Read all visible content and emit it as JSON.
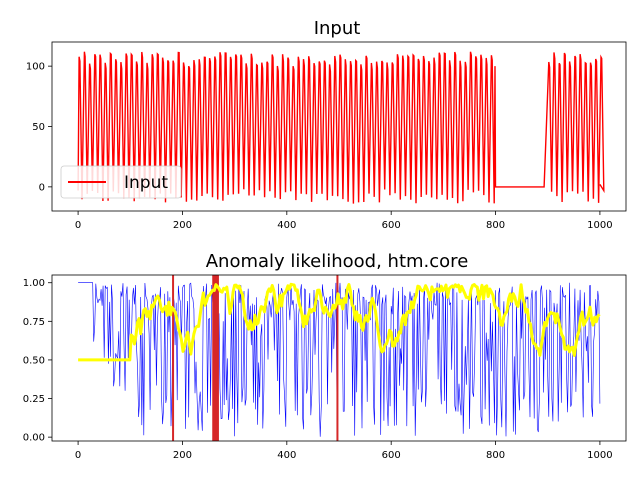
{
  "chart_data": [
    {
      "type": "line",
      "title": "Input",
      "xlabel": "",
      "ylabel": "",
      "xlim": [
        -50,
        1050
      ],
      "ylim": [
        -20,
        120
      ],
      "xticks": [
        0,
        200,
        400,
        600,
        800,
        1000
      ],
      "yticks": [
        0,
        50,
        100
      ],
      "grid": false,
      "legend": {
        "placement": "lower-left",
        "entries": [
          "Input"
        ]
      },
      "series": [
        {
          "name": "Input",
          "color": "#ff0000",
          "description_values": {
            "x_range": [
              0,
              1000
            ],
            "oscillation_period": 10,
            "high_range": [
              100,
              112
            ],
            "low_range": [
              -14,
              -2
            ],
            "flat_segment": {
              "x": [
                800,
                895
              ],
              "y": 0
            },
            "end_value": 2
          }
        }
      ]
    },
    {
      "type": "line",
      "title": "Anomaly likelihood, htm.core",
      "xlabel": "",
      "ylabel": "",
      "xlim": [
        -50,
        1050
      ],
      "ylim": [
        -0.025,
        1.05
      ],
      "xticks": [
        0,
        200,
        400,
        600,
        800,
        1000
      ],
      "yticks": [
        0.0,
        0.25,
        0.5,
        0.75,
        1.0
      ],
      "grid": false,
      "vertical_markers": {
        "color": "#d62728",
        "x": [
          182,
          259,
          262,
          265,
          268,
          497
        ]
      },
      "series": [
        {
          "name": "",
          "color": "#0000ff",
          "description_values": {
            "x_range": [
              0,
              1000
            ],
            "start_value": 1.0,
            "range": [
              0.0,
              1.0
            ]
          }
        },
        {
          "name": "",
          "color": "#ffff00",
          "description_values": {
            "x_range": [
              0,
              1000
            ],
            "initial_flat": {
              "x": [
                0,
                100
              ],
              "y": 0.5
            },
            "range": [
              0.5,
              1.0
            ]
          }
        }
      ]
    }
  ]
}
